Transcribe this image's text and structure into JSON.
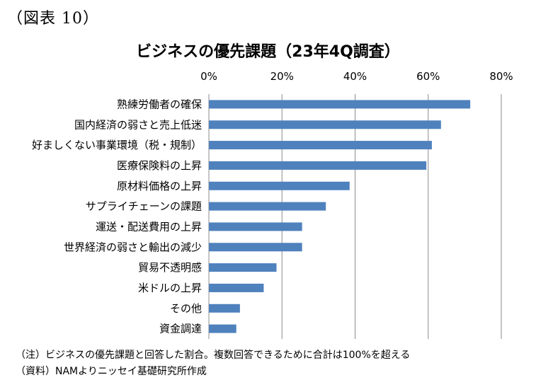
{
  "figure_label": "（図表 10）",
  "chart_data": {
    "type": "bar",
    "orientation": "horizontal",
    "title": "ビジネスの優先課題（23年4Q調査）",
    "categories": [
      "熟練労働者の確保",
      "国内経済の弱さと売上低迷",
      "好ましくない事業環境（税・規制）",
      "医療保険料の上昇",
      "原材料価格の上昇",
      "サプライチェーンの課題",
      "運送・配送費用の上昇",
      "世界経済の弱さと輸出の減少",
      "貿易不透明感",
      "米ドルの上昇",
      "その他",
      "資金調達"
    ],
    "values": [
      71.5,
      63.5,
      61.0,
      59.5,
      38.5,
      32.0,
      25.5,
      25.5,
      18.5,
      15.0,
      8.5,
      7.5
    ],
    "xlim": [
      0,
      80
    ],
    "xticks": [
      "0%",
      "20%",
      "40%",
      "60%",
      "80%"
    ],
    "xtick_values": [
      0,
      20,
      40,
      60,
      80
    ],
    "axis_position": "top",
    "grid": true,
    "legend": "none",
    "bar_color": "#4f81bd",
    "grid_color": "#8c8c8c"
  },
  "notes": [
    "（注）ビジネスの優先課題と回答した割合。複数回答できるために合計は100%を超える",
    "（資料）NAMよりニッセイ基礎研究所作成"
  ]
}
